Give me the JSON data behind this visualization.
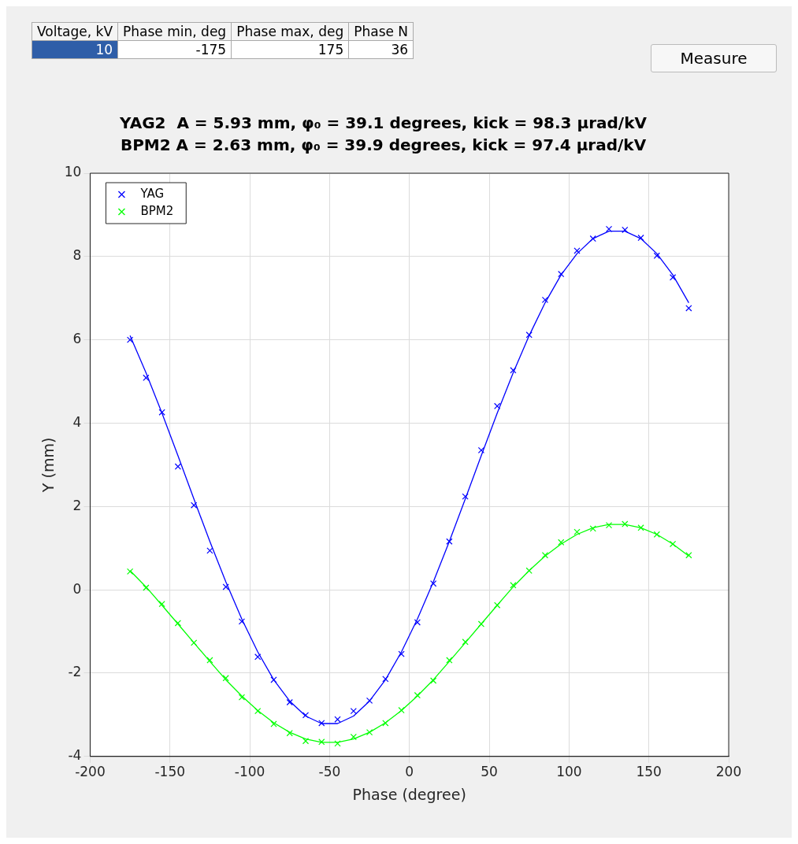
{
  "chart_data": {
    "type": "scatter",
    "title": "YAG2  A = 5.93 mm, φ₀ = 39.1 degrees, kick = 98.3 μrad/kV",
    "subtitle": "BPM2 A = 2.63 mm, φ₀ = 39.9 degrees, kick = 97.4 μrad/kV",
    "xlabel": "Phase (degree)",
    "ylabel": "Y (mm)",
    "annotations": [
      "Voltage, kV",
      "Phase min, deg",
      "Phase max, deg",
      "Phase N",
      "10",
      "-175",
      "175",
      "36",
      "Measure"
    ],
    "x": [
      -175,
      -165,
      -155,
      -145,
      -135,
      -125,
      -115,
      -105,
      -95,
      -85,
      -75,
      -65,
      -55,
      -45,
      -35,
      -25,
      -15,
      -5,
      5,
      15,
      25,
      35,
      45,
      55,
      65,
      75,
      85,
      95,
      105,
      115,
      125,
      135,
      145,
      155,
      165,
      175
    ],
    "series": [
      {
        "name": "YAG",
        "color": "#0000ff",
        "marker": "cross",
        "values": [
          6.0,
          5.09,
          4.26,
          2.96,
          2.03,
          0.94,
          0.07,
          -0.76,
          -1.61,
          -2.16,
          -2.7,
          -3.01,
          -3.2,
          -3.11,
          -2.91,
          -2.66,
          -2.14,
          -1.54,
          -0.78,
          0.15,
          1.16,
          2.24,
          3.35,
          4.41,
          5.27,
          6.12,
          6.96,
          7.58,
          8.14,
          8.43,
          8.66,
          8.64,
          8.45,
          8.02,
          7.5,
          6.76
        ]
      },
      {
        "name": "BPM2",
        "color": "#00ff00",
        "marker": "cross",
        "values": [
          0.44,
          0.05,
          -0.34,
          -0.8,
          -1.27,
          -1.69,
          -2.12,
          -2.58,
          -2.91,
          -3.22,
          -3.44,
          -3.63,
          -3.65,
          -3.69,
          -3.53,
          -3.42,
          -3.2,
          -2.89,
          -2.53,
          -2.18,
          -1.69,
          -1.25,
          -0.82,
          -0.37,
          0.11,
          0.46,
          0.83,
          1.14,
          1.39,
          1.47,
          1.55,
          1.58,
          1.49,
          1.33,
          1.1,
          0.83
        ]
      },
      {
        "color": "#0000ff",
        "type": "line",
        "marker": "none",
        "values": [
          6.1,
          5.21,
          4.24,
          3.22,
          2.18,
          1.16,
          0.19,
          -0.7,
          -1.49,
          -2.16,
          -2.67,
          -3.03,
          -3.21,
          -3.21,
          -3.03,
          -2.67,
          -2.16,
          -1.49,
          -0.7,
          0.19,
          1.16,
          2.18,
          3.22,
          4.24,
          5.21,
          6.1,
          6.89,
          7.56,
          8.07,
          8.43,
          8.61,
          8.61,
          8.43,
          8.07,
          7.56,
          6.89
        ]
      },
      {
        "color": "#00ff00",
        "type": "line",
        "marker": "none",
        "values": [
          0.46,
          0.07,
          -0.37,
          -0.82,
          -1.27,
          -1.72,
          -2.16,
          -2.55,
          -2.9,
          -3.19,
          -3.42,
          -3.58,
          -3.66,
          -3.66,
          -3.58,
          -3.42,
          -3.19,
          -2.9,
          -2.55,
          -2.16,
          -1.72,
          -1.27,
          -0.82,
          -0.37,
          0.07,
          0.46,
          0.81,
          1.1,
          1.33,
          1.49,
          1.57,
          1.57,
          1.49,
          1.33,
          1.1,
          0.81
        ]
      }
    ],
    "xlim": [
      -200,
      200
    ],
    "xticks": [
      -200,
      -150,
      -100,
      -50,
      0,
      50,
      100,
      150,
      200
    ],
    "ylim": [
      -4,
      10
    ],
    "yticks": [
      -4,
      -2,
      0,
      2,
      4,
      6,
      8,
      10
    ],
    "grid": true,
    "legend": "top left"
  }
}
